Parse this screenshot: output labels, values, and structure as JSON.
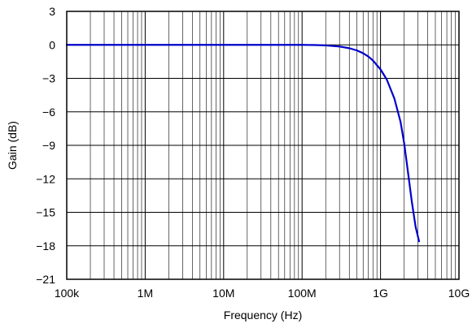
{
  "chart_data": {
    "type": "line",
    "title": "",
    "xlabel": "Frequency (Hz)",
    "ylabel": "Gain (dB)",
    "x_scale": "log",
    "xlim": [
      100000,
      10000000000
    ],
    "ylim": [
      -21,
      3
    ],
    "grid": true,
    "legend": "none",
    "x_ticks": [
      {
        "value": 100000,
        "label": "100k"
      },
      {
        "value": 1000000,
        "label": "1M"
      },
      {
        "value": 10000000,
        "label": "10M"
      },
      {
        "value": 100000000,
        "label": "100M"
      },
      {
        "value": 1000000000,
        "label": "1G"
      },
      {
        "value": 10000000000,
        "label": "10G"
      }
    ],
    "y_ticks": [
      {
        "value": 3,
        "label": "3"
      },
      {
        "value": 0,
        "label": "0"
      },
      {
        "value": -3,
        "label": "−3"
      },
      {
        "value": -6,
        "label": "−6"
      },
      {
        "value": -9,
        "label": "−9"
      },
      {
        "value": -12,
        "label": "−12"
      },
      {
        "value": -15,
        "label": "−15"
      },
      {
        "value": -18,
        "label": "−18"
      },
      {
        "value": -21,
        "label": "−21"
      }
    ],
    "series": [
      {
        "color": "#0000cc",
        "x": [
          100000,
          1000000,
          10000000,
          100000000,
          150000000,
          200000000,
          300000000,
          400000000,
          500000000,
          600000000,
          700000000,
          800000000,
          1000000000,
          1200000000,
          1500000000,
          1800000000,
          2000000000,
          2200000000,
          2500000000,
          2800000000,
          3100000000
        ],
        "y": [
          0,
          0,
          0,
          0,
          -0.02,
          -0.05,
          -0.15,
          -0.3,
          -0.5,
          -0.75,
          -1.05,
          -1.4,
          -2.2,
          -3.1,
          -4.8,
          -6.9,
          -8.8,
          -11.0,
          -14.0,
          -16.3,
          -17.6
        ]
      }
    ]
  }
}
